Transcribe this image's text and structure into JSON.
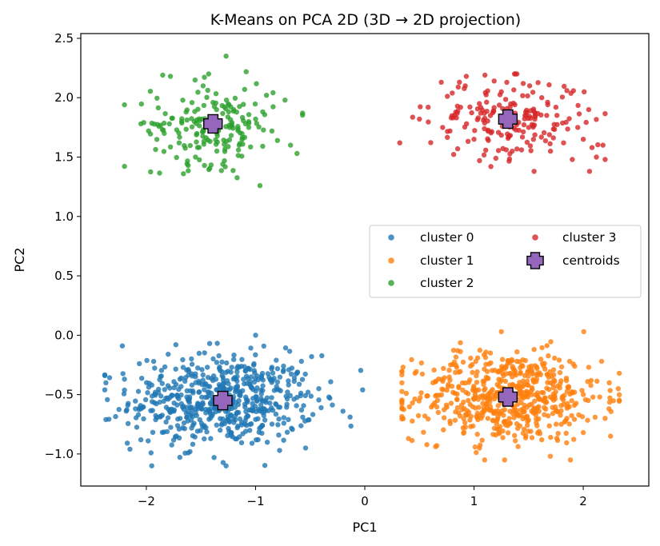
{
  "chart_data": {
    "type": "scatter",
    "title": "K-Means on PCA 2D (3D → 2D projection)",
    "xlabel": "PC1",
    "ylabel": "PC2",
    "xlim": [
      -2.6,
      2.6
    ],
    "ylim": [
      -1.27,
      2.54
    ],
    "xticks": [
      -2,
      -1,
      0,
      1,
      2
    ],
    "xtick_labels": [
      "−2",
      "−1",
      "0",
      "1",
      "2"
    ],
    "yticks": [
      -1.0,
      -0.5,
      0.0,
      0.5,
      1.0,
      1.5,
      2.0,
      2.5
    ],
    "ytick_labels": [
      "−1.0",
      "−0.5",
      "0.0",
      "0.5",
      "1.0",
      "1.5",
      "2.0",
      "2.5"
    ],
    "grid": false,
    "legend_position": "center-right",
    "series": [
      {
        "name": "cluster 0",
        "color": "#1f77b4",
        "center": [
          -1.3,
          -0.55
        ],
        "spread": [
          0.42,
          0.19
        ],
        "point_count": 600,
        "x_range": [
          -2.38,
          -0.02
        ],
        "y_range": [
          -1.1,
          0.0
        ],
        "points": [
          [
            -2.38,
            -0.34
          ],
          [
            -2.37,
            -0.4
          ],
          [
            -2.37,
            -0.71
          ],
          [
            -2.22,
            -0.09
          ],
          [
            -2.2,
            -0.37
          ],
          [
            -2.15,
            -0.96
          ],
          [
            -2.05,
            -0.88
          ],
          [
            -2.1,
            -0.62
          ],
          [
            -1.95,
            -0.42
          ],
          [
            -1.8,
            -0.16
          ],
          [
            -1.7,
            -0.79
          ],
          [
            -1.73,
            -0.08
          ],
          [
            -1.6,
            -0.98
          ],
          [
            -1.55,
            -0.35
          ],
          [
            -1.42,
            -0.07
          ],
          [
            -1.38,
            -1.03
          ],
          [
            -1.27,
            -1.1
          ],
          [
            -1.15,
            -0.27
          ],
          [
            -1.05,
            -0.75
          ],
          [
            -1.0,
            0.0
          ],
          [
            -0.92,
            -0.62
          ],
          [
            -0.85,
            -0.27
          ],
          [
            -0.78,
            -0.97
          ],
          [
            -0.7,
            -0.71
          ],
          [
            -0.58,
            -0.22
          ],
          [
            -0.52,
            -0.48
          ],
          [
            -0.4,
            -0.61
          ],
          [
            -0.32,
            -0.53
          ],
          [
            -0.2,
            -0.64
          ],
          [
            -0.02,
            -0.46
          ]
        ]
      },
      {
        "name": "cluster 1",
        "color": "#ff7f0e",
        "center": [
          1.31,
          -0.52
        ],
        "spread": [
          0.42,
          0.19
        ],
        "point_count": 600,
        "x_range": [
          0.34,
          2.33
        ],
        "y_range": [
          -1.05,
          0.03
        ],
        "points": [
          [
            0.34,
            -0.62
          ],
          [
            0.4,
            -0.87
          ],
          [
            0.38,
            -0.49
          ],
          [
            0.46,
            -0.32
          ],
          [
            0.55,
            -0.68
          ],
          [
            0.66,
            -0.93
          ],
          [
            0.72,
            -0.28
          ],
          [
            0.85,
            -0.13
          ],
          [
            0.9,
            -0.78
          ],
          [
            1.0,
            -0.54
          ],
          [
            1.05,
            -0.95
          ],
          [
            1.15,
            -0.15
          ],
          [
            1.2,
            -0.84
          ],
          [
            1.25,
            0.03
          ],
          [
            1.28,
            -1.05
          ],
          [
            1.35,
            -0.35
          ],
          [
            1.45,
            -0.62
          ],
          [
            1.55,
            -0.12
          ],
          [
            1.62,
            -0.88
          ],
          [
            1.7,
            -0.4
          ],
          [
            1.78,
            -0.21
          ],
          [
            1.85,
            -0.7
          ],
          [
            1.92,
            -0.48
          ],
          [
            2.0,
            -0.82
          ],
          [
            2.05,
            -0.27
          ],
          [
            2.15,
            -0.52
          ],
          [
            2.2,
            -0.7
          ],
          [
            2.25,
            -0.85
          ],
          [
            2.32,
            -0.45
          ],
          [
            2.33,
            -0.32
          ]
        ]
      },
      {
        "name": "cluster 2",
        "color": "#2ca02c",
        "center": [
          -1.39,
          1.78
        ],
        "spread": [
          0.28,
          0.17
        ],
        "point_count": 200,
        "x_range": [
          -2.2,
          -0.57
        ],
        "y_range": [
          1.26,
          2.36
        ],
        "points": [
          [
            -2.2,
            1.94
          ],
          [
            -2.05,
            1.78
          ],
          [
            -1.98,
            1.72
          ],
          [
            -1.85,
            2.19
          ],
          [
            -1.78,
            2.18
          ],
          [
            -1.7,
            1.62
          ],
          [
            -1.66,
            1.36
          ],
          [
            -1.55,
            1.5
          ],
          [
            -1.48,
            2.1
          ],
          [
            -1.43,
            2.2
          ],
          [
            -1.35,
            1.68
          ],
          [
            -1.3,
            1.44
          ],
          [
            -1.27,
            2.35
          ],
          [
            -1.2,
            1.9
          ],
          [
            -1.15,
            1.6
          ],
          [
            -1.1,
            2.07
          ],
          [
            -1.0,
            1.82
          ],
          [
            -0.96,
            1.26
          ],
          [
            -0.9,
            2.02
          ],
          [
            -0.85,
            1.72
          ],
          [
            -0.8,
            1.64
          ],
          [
            -0.73,
            1.98
          ],
          [
            -0.68,
            1.6
          ],
          [
            -0.62,
            1.53
          ],
          [
            -0.57,
            1.87
          ]
        ]
      },
      {
        "name": "cluster 3",
        "color": "#d62728",
        "center": [
          1.31,
          1.82
        ],
        "spread": [
          0.36,
          0.17
        ],
        "point_count": 200,
        "x_range": [
          0.32,
          2.2
        ],
        "y_range": [
          1.38,
          2.2
        ],
        "points": [
          [
            0.32,
            1.62
          ],
          [
            0.5,
            1.82
          ],
          [
            0.58,
            1.92
          ],
          [
            0.7,
            2.13
          ],
          [
            0.78,
            1.72
          ],
          [
            0.85,
            1.57
          ],
          [
            0.92,
            2.1
          ],
          [
            1.0,
            1.65
          ],
          [
            1.05,
            1.47
          ],
          [
            1.1,
            2.19
          ],
          [
            1.15,
            1.85
          ],
          [
            1.2,
            1.49
          ],
          [
            1.25,
            2.05
          ],
          [
            1.35,
            1.55
          ],
          [
            1.45,
            2.12
          ],
          [
            1.5,
            1.75
          ],
          [
            1.55,
            1.38
          ],
          [
            1.62,
            2.0
          ],
          [
            1.7,
            1.55
          ],
          [
            1.75,
            1.92
          ],
          [
            1.82,
            1.62
          ],
          [
            1.9,
            1.48
          ],
          [
            2.0,
            1.65
          ],
          [
            2.05,
            1.9
          ],
          [
            2.08,
            1.58
          ],
          [
            2.12,
            1.5
          ],
          [
            2.2,
            1.48
          ],
          [
            2.18,
            1.6
          ],
          [
            1.95,
            1.75
          ],
          [
            1.85,
            2.06
          ]
        ]
      }
    ],
    "centroids": {
      "name": "centroids",
      "color": "#9467bd",
      "marker": "X",
      "points": [
        [
          -1.3,
          -0.55
        ],
        [
          1.31,
          -0.52
        ],
        [
          -1.39,
          1.78
        ],
        [
          1.31,
          1.82
        ]
      ]
    },
    "legend": [
      "cluster 0",
      "cluster 1",
      "cluster 2",
      "cluster 3",
      "centroids"
    ]
  }
}
